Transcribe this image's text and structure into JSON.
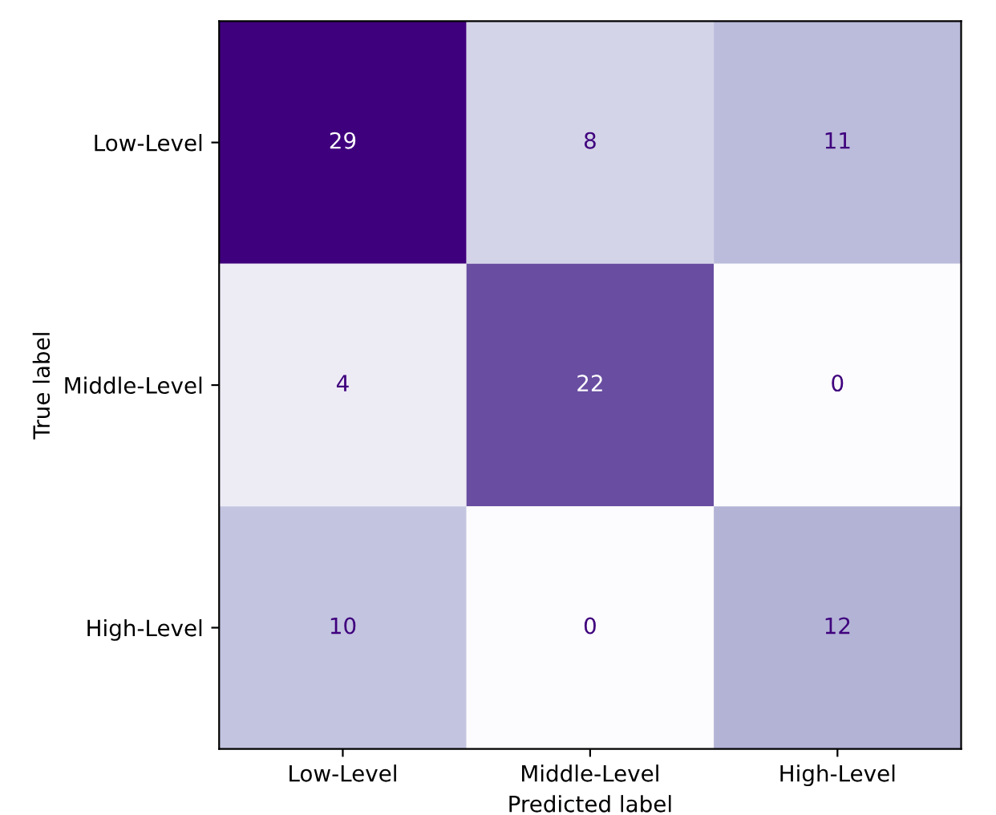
{
  "chart_data": {
    "type": "heatmap",
    "xlabel": "Predicted label",
    "ylabel": "True label",
    "categories": [
      "Low-Level",
      "Middle-Level",
      "High-Level"
    ],
    "y_categories": [
      "Low-Level",
      "Middle-Level",
      "High-Level"
    ],
    "cells": [
      [
        29,
        8,
        11
      ],
      [
        4,
        22,
        0
      ],
      [
        10,
        0,
        12
      ]
    ],
    "data_labels": true
  }
}
